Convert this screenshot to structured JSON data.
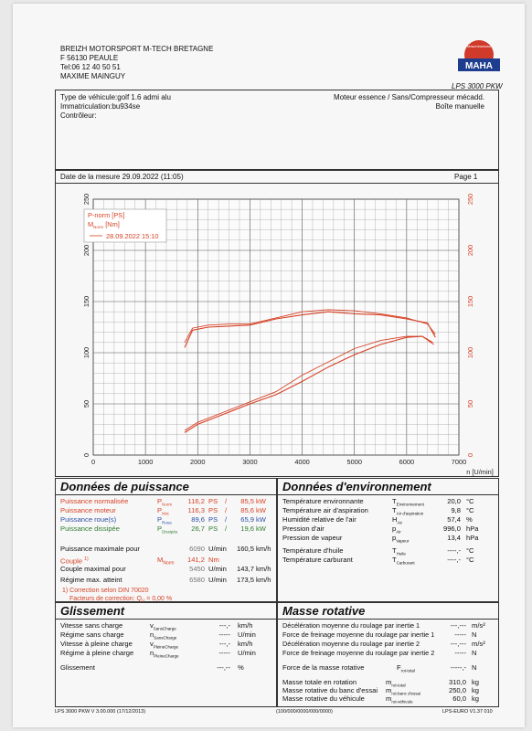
{
  "company": {
    "name": "BREIZH MOTORSPORT M-TECH BRETAGNE",
    "address": "F 56130 PEAULE",
    "tel": "Tel:06 12 40 50 51",
    "contact": "MAXIME MAINGUY"
  },
  "logo": {
    "top_text": "Maschinenbau",
    "brand": "MAHA",
    "model": "LPS 3000 PKW"
  },
  "vehicle": {
    "type": "Type de véhicule:golf 1.6 admi alu",
    "registration": "Immatriculation:bu934se",
    "controller": "Contrôleur:",
    "engine": "Moteur essence / Sans/Compresseur mécadd.",
    "gearbox": "Boîte manuelle"
  },
  "measure": {
    "date": "Date de la mesure 29.09.2022 (11:05)",
    "page": "Page 1"
  },
  "chart_data": {
    "type": "line",
    "x_range": [
      0,
      7000
    ],
    "y_range": [
      0,
      250
    ],
    "y2_range": [
      0,
      250
    ],
    "x_ticks": [
      0,
      1000,
      2000,
      3000,
      4000,
      5000,
      6000,
      7000
    ],
    "y_ticks": [
      0,
      50,
      100,
      150,
      200,
      250
    ],
    "xlabel": "n [U/min]",
    "legend": {
      "l1": "P-norm [PS]",
      "l2a": "M",
      "l2b": "Norm",
      "l2c": " [Nm]",
      "l3": "28.09.2022 15:10"
    },
    "series": [
      {
        "name": "P-norm [PS]",
        "values": [
          [
            1750,
            22
          ],
          [
            2000,
            30
          ],
          [
            2500,
            40
          ],
          [
            3000,
            50
          ],
          [
            3500,
            59
          ],
          [
            4000,
            72
          ],
          [
            4500,
            86
          ],
          [
            5000,
            98
          ],
          [
            5500,
            108
          ],
          [
            6000,
            115
          ],
          [
            6300,
            116
          ],
          [
            6500,
            110
          ]
        ]
      },
      {
        "name": "P-norm [PS]",
        "values": [
          [
            1750,
            24
          ],
          [
            2000,
            32
          ],
          [
            2500,
            42
          ],
          [
            3000,
            52
          ],
          [
            3500,
            62
          ],
          [
            4000,
            78
          ],
          [
            4500,
            91
          ],
          [
            5000,
            104
          ],
          [
            5500,
            112
          ],
          [
            6000,
            116
          ],
          [
            6300,
            116
          ],
          [
            6520,
            108
          ]
        ]
      },
      {
        "name": "M Norm [Nm]",
        "values": [
          [
            1750,
            105
          ],
          [
            1900,
            122
          ],
          [
            2200,
            125
          ],
          [
            2600,
            126
          ],
          [
            3000,
            127
          ],
          [
            3500,
            133
          ],
          [
            4000,
            137
          ],
          [
            4500,
            140
          ],
          [
            5000,
            138
          ],
          [
            5500,
            137
          ],
          [
            6000,
            133
          ],
          [
            6400,
            129
          ],
          [
            6550,
            115
          ]
        ]
      },
      {
        "name": "M Norm [Nm]",
        "values": [
          [
            1750,
            110
          ],
          [
            1900,
            124
          ],
          [
            2200,
            127
          ],
          [
            2600,
            128
          ],
          [
            3000,
            128
          ],
          [
            3500,
            134
          ],
          [
            4000,
            140
          ],
          [
            4500,
            142
          ],
          [
            5000,
            141
          ],
          [
            5500,
            138
          ],
          [
            6000,
            134
          ],
          [
            6400,
            128
          ],
          [
            6550,
            118
          ]
        ]
      }
    ]
  },
  "power": {
    "title": "Données de puissance",
    "rows": [
      {
        "label": "Puissance normalisée",
        "sym": "P",
        "sub": "Norm",
        "v1": "116,2",
        "u1": "PS",
        "v2": "85,5",
        "u2": "kW",
        "color": "#d64226"
      },
      {
        "label": "Puissance moteur",
        "sym": "P",
        "sub": "Mot",
        "v1": "116,3",
        "u1": "PS",
        "v2": "85,6",
        "u2": "kW",
        "color": "#d64226"
      },
      {
        "label": "Puissance roue(s)",
        "sym": "P",
        "sub": "Roue",
        "v1": "89,6",
        "u1": "PS",
        "v2": "65,9",
        "u2": "kW",
        "color": "#2d4fa3"
      },
      {
        "label": "Puissance dissipée",
        "sym": "P",
        "sub": "Dissipée",
        "v1": "26,7",
        "u1": "PS",
        "v2": "19,6",
        "u2": "kW",
        "color": "#2f7d2f"
      }
    ],
    "max_power": {
      "label": "Puissance maximale pour",
      "v1": "6090",
      "u1": "U/min",
      "v2": "160,5",
      "u2": "km/h"
    },
    "torque": {
      "label": "Couple",
      "sup": "1)",
      "sym": "M",
      "sub": "Norm",
      "v": "141,2",
      "u": "Nm"
    },
    "max_torque": {
      "label": "Couple maximal pour",
      "v1": "5450",
      "u1": "U/min",
      "v2": "143,7",
      "u2": "km/h"
    },
    "max_regime": {
      "label": "Régime max. atteint",
      "v1": "6580",
      "u1": "U/min",
      "v2": "173,5",
      "u2": "km/h"
    },
    "correction": "1) Correction selon DIN 70020",
    "factors": {
      "label": "Facteurs de correction: Q",
      "sub": "V",
      "val": "= 0,00 %"
    }
  },
  "env": {
    "title": "Données d'environnement",
    "rows": [
      {
        "label": "Température environnante",
        "sym": "T",
        "sub": "Environnement",
        "v": "20,0",
        "u": "°C"
      },
      {
        "label": "Température air d'aspiration",
        "sym": "T",
        "sub": "Air d'aspiration",
        "v": "9,8",
        "u": "°C"
      },
      {
        "label": "Humidité relative de l'air",
        "sym": "H",
        "sub": "Air",
        "v": "57,4",
        "u": "%"
      },
      {
        "label": "Pression d'air",
        "sym": "p",
        "sub": "Air",
        "v": "996,0",
        "u": "hPa"
      },
      {
        "label": "Pression de vapeur",
        "sym": "p",
        "sub": "Vapeur",
        "v": "13,4",
        "u": "hPa"
      },
      {
        "label": "Température d'huile",
        "sym": "T",
        "sub": "Huile",
        "v": "----,-",
        "u": "°C"
      },
      {
        "label": "Température carburant",
        "sym": "T",
        "sub": "Carburant",
        "v": "----,-",
        "u": "°C"
      }
    ]
  },
  "slip": {
    "title": "Glissement",
    "rows": [
      {
        "label": "Vitesse sans charge",
        "sym": "v",
        "sub": "SansCharge",
        "v": "---,-",
        "u": "km/h"
      },
      {
        "label": "Régime sans charge",
        "sym": "n",
        "sub": "SansCharge",
        "v": "-----",
        "u": "U/min"
      },
      {
        "label": "Vitesse à pleine charge",
        "sym": "v",
        "sub": "PleineCharge",
        "v": "---,-",
        "u": "km/h"
      },
      {
        "label": "Régime à pleine charge",
        "sym": "n",
        "sub": "PleineCharge",
        "v": "-----",
        "u": "U/min"
      }
    ],
    "glissement": {
      "label": "Glissement",
      "v": "---,--",
      "u": "%"
    }
  },
  "mass": {
    "title": "Masse rotative",
    "rows": [
      {
        "label": "Décélération moyenne du roulage par inertie 1",
        "v": "---,---",
        "u": "m/s²"
      },
      {
        "label": "Force de freinage moyenne du roulage par inertie 1",
        "v": "-----",
        "u": "N"
      },
      {
        "label": "Décélération moyenne du roulage par inertie 2",
        "v": "---,---",
        "u": "m/s²"
      },
      {
        "label": "Force de freinage moyenne du roulage par inertie 2",
        "v": "-----",
        "u": "N"
      }
    ],
    "force": {
      "label": "Force de la masse rotative",
      "sym": "F",
      "sub": "rot-total",
      "v": "-----,-",
      "u": "N"
    },
    "totals": [
      {
        "label": "Masse totale en rotation",
        "sym": "m",
        "sub": "rot-total",
        "v": "310,0",
        "u": "kg"
      },
      {
        "label": "Masse rotative du banc d'essai",
        "sym": "m",
        "sub": "rot-banc d'essai",
        "v": "250,0",
        "u": "kg"
      },
      {
        "label": "Masse rotative du véhicule",
        "sym": "m",
        "sub": "rot-véhicule",
        "v": "60,0",
        "u": "kg"
      }
    ]
  },
  "footer": {
    "left": "LPS 3000 PKW V 3.00.000 (17/12/2013)",
    "middle": "(100/000/0000/000/0000)",
    "right": "LPS-EURO V1.37 010"
  }
}
